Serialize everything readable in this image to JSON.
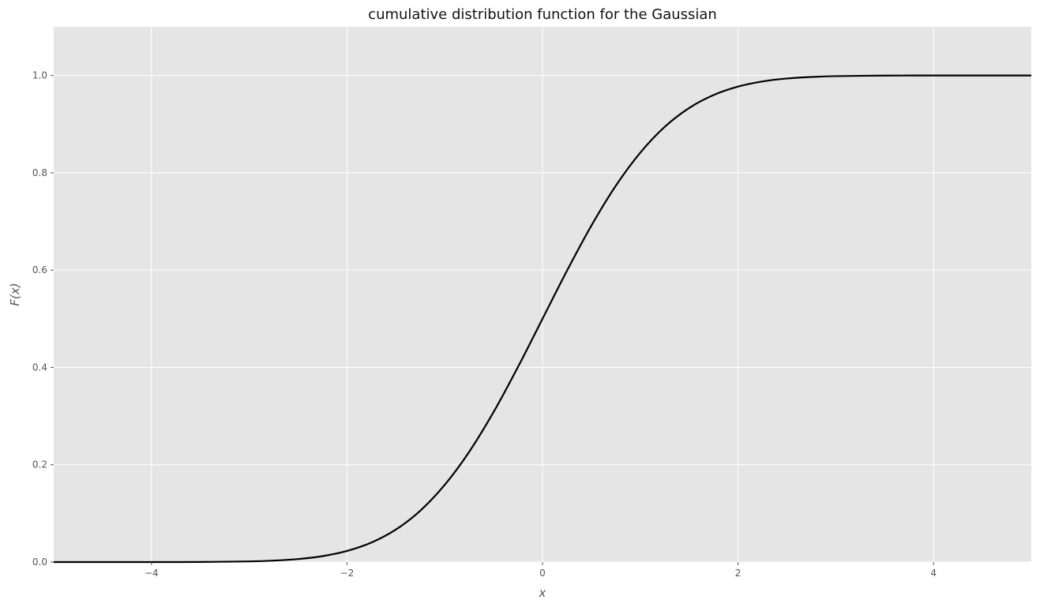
{
  "chart_data": {
    "type": "line",
    "title": "cumulative distribution function for the Gaussian",
    "xlabel": "x",
    "ylabel": "F(x)",
    "xlim": [
      -5,
      5
    ],
    "ylim": [
      0.0,
      1.1
    ],
    "xticks": [
      -4,
      -2,
      0,
      2,
      4
    ],
    "xtick_labels": [
      "−4",
      "−2",
      "0",
      "2",
      "4"
    ],
    "yticks": [
      0.0,
      0.2,
      0.4,
      0.6,
      0.8,
      1.0
    ],
    "ytick_labels": [
      "0.0",
      "0.2",
      "0.4",
      "0.6",
      "0.8",
      "1.0"
    ],
    "grid": true,
    "series": [
      {
        "color": "#000000",
        "x": [
          -5,
          -4.5,
          -4,
          -3.5,
          -3,
          -2.75,
          -2.5,
          -2.25,
          -2,
          -1.75,
          -1.5,
          -1.25,
          -1,
          -0.75,
          -0.5,
          -0.25,
          0,
          0.25,
          0.5,
          0.75,
          1,
          1.25,
          1.5,
          1.75,
          2,
          2.25,
          2.5,
          2.75,
          3,
          3.5,
          4,
          4.5,
          5
        ],
        "values": [
          0.0,
          0.0,
          0.0,
          0.0002,
          0.0013,
          0.003,
          0.0062,
          0.0122,
          0.0228,
          0.0401,
          0.0668,
          0.1056,
          0.1587,
          0.2266,
          0.3085,
          0.4013,
          0.5,
          0.5987,
          0.6915,
          0.7734,
          0.8413,
          0.8944,
          0.9332,
          0.9599,
          0.9772,
          0.9878,
          0.9938,
          0.997,
          0.9987,
          0.9998,
          1.0,
          1.0,
          1.0
        ]
      }
    ],
    "colors": {
      "plot_background": "#e5e5e5",
      "grid": "#ffffff",
      "line": "#000000"
    }
  }
}
